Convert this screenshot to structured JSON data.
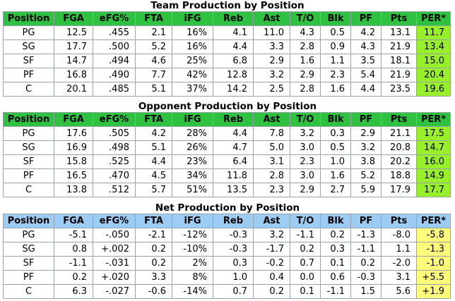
{
  "columns": [
    "Position",
    "FGA",
    "eFG%",
    "FTA",
    "iFG",
    "Reb",
    "Ast",
    "T/O",
    "Blk",
    "PF",
    "Pts",
    "PER*"
  ],
  "colors": {
    "green_header": "#2fc241",
    "blue_header": "#9ccbf3",
    "per_green": "#98f02a",
    "per_yellow": "#fcfc7a"
  },
  "team": {
    "title": "Team Production by Position",
    "rows": [
      [
        "PG",
        "12.5",
        ".455",
        "2.1",
        "16%",
        "4.1",
        "11.0",
        "4.3",
        "0.5",
        "4.2",
        "13.1",
        "11.7"
      ],
      [
        "SG",
        "17.7",
        ".500",
        "5.2",
        "16%",
        "4.4",
        "3.3",
        "2.8",
        "0.9",
        "4.3",
        "21.9",
        "13.4"
      ],
      [
        "SF",
        "14.7",
        ".494",
        "4.6",
        "25%",
        "6.8",
        "2.9",
        "1.6",
        "1.1",
        "3.5",
        "18.1",
        "15.0"
      ],
      [
        "PF",
        "16.8",
        ".490",
        "7.7",
        "42%",
        "12.8",
        "3.2",
        "2.9",
        "2.3",
        "5.4",
        "21.9",
        "20.4"
      ],
      [
        "C",
        "20.1",
        ".485",
        "5.1",
        "37%",
        "14.2",
        "2.5",
        "2.8",
        "1.6",
        "4.4",
        "23.5",
        "19.6"
      ]
    ]
  },
  "opponent": {
    "title": "Opponent Production by Position",
    "rows": [
      [
        "PG",
        "17.6",
        ".505",
        "4.2",
        "28%",
        "4.4",
        "7.8",
        "3.2",
        "0.3",
        "2.9",
        "21.1",
        "17.5"
      ],
      [
        "SG",
        "16.9",
        ".498",
        "5.1",
        "26%",
        "4.7",
        "5.0",
        "3.0",
        "0.5",
        "3.2",
        "20.8",
        "14.7"
      ],
      [
        "SF",
        "15.8",
        ".525",
        "4.4",
        "23%",
        "6.4",
        "3.1",
        "2.3",
        "1.0",
        "3.8",
        "20.2",
        "16.0"
      ],
      [
        "PF",
        "16.5",
        ".470",
        "4.5",
        "34%",
        "11.8",
        "2.8",
        "3.0",
        "1.6",
        "5.2",
        "18.8",
        "14.9"
      ],
      [
        "C",
        "13.8",
        ".512",
        "5.7",
        "51%",
        "13.5",
        "2.3",
        "2.9",
        "2.7",
        "5.9",
        "17.9",
        "17.7"
      ]
    ]
  },
  "net": {
    "title": "Net Production by Position",
    "rows": [
      [
        "PG",
        "-5.1",
        "-.050",
        "-2.1",
        "-12%",
        "-0.3",
        "3.2",
        "-1.1",
        "0.2",
        "-1.3",
        "-8.0",
        "-5.8"
      ],
      [
        "SG",
        "0.8",
        "+.002",
        "0.2",
        "-10%",
        "-0.3",
        "-1.7",
        "0.2",
        "0.3",
        "-1.1",
        "1.1",
        "-1.3"
      ],
      [
        "SF",
        "-1.1",
        "-.031",
        "0.2",
        "2%",
        "0.3",
        "-0.2",
        "0.7",
        "0.1",
        "0.2",
        "-2.0",
        "-1.0"
      ],
      [
        "PF",
        "0.2",
        "+.020",
        "3.3",
        "8%",
        "1.0",
        "0.4",
        "0.0",
        "0.6",
        "-0.3",
        "3.1",
        "+5.5"
      ],
      [
        "C",
        "6.3",
        "-.027",
        "-0.6",
        "-14%",
        "0.7",
        "0.2",
        "0.1",
        "-1.1",
        "1.5",
        "5.6",
        "+1.9"
      ]
    ]
  }
}
